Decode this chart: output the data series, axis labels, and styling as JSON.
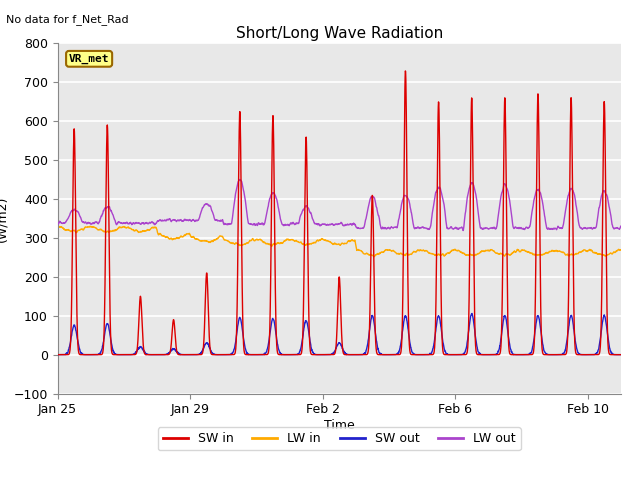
{
  "title": "Short/Long Wave Radiation",
  "xlabel": "Time",
  "ylabel": "(W/m2)",
  "ylim": [
    -100,
    800
  ],
  "yticks": [
    -100,
    0,
    100,
    200,
    300,
    400,
    500,
    600,
    700,
    800
  ],
  "no_data_label": "No data for f_Net_Rad",
  "station_label": "VR_met",
  "figure_facecolor": "#ffffff",
  "plot_facecolor": "#e8e8e8",
  "grid_color": "#d0d0d0",
  "colors": {
    "SW_in": "#dd0000",
    "LW_in": "#ffaa00",
    "SW_out": "#2222cc",
    "LW_out": "#aa44cc"
  },
  "legend_labels": [
    "SW in",
    "LW in",
    "SW out",
    "LW out"
  ],
  "x_tick_labels": [
    "Jan 25",
    "Jan 29",
    "Feb 2",
    "Feb 6",
    "Feb 10"
  ],
  "x_tick_positions": [
    0,
    4,
    8,
    12,
    16
  ],
  "num_days": 17,
  "day_peaks_sw": [
    580,
    590,
    150,
    90,
    210,
    625,
    615,
    560,
    200,
    410,
    730,
    650,
    660,
    660,
    670,
    660,
    650
  ],
  "day_peaks_sw_out": [
    75,
    80,
    20,
    15,
    30,
    95,
    92,
    88,
    30,
    100,
    100,
    100,
    105,
    100,
    100,
    100,
    100
  ],
  "lw_in_base_early": 330,
  "lw_in_base_mid": 295,
  "lw_in_base_late": 265,
  "lw_out_base": 335
}
